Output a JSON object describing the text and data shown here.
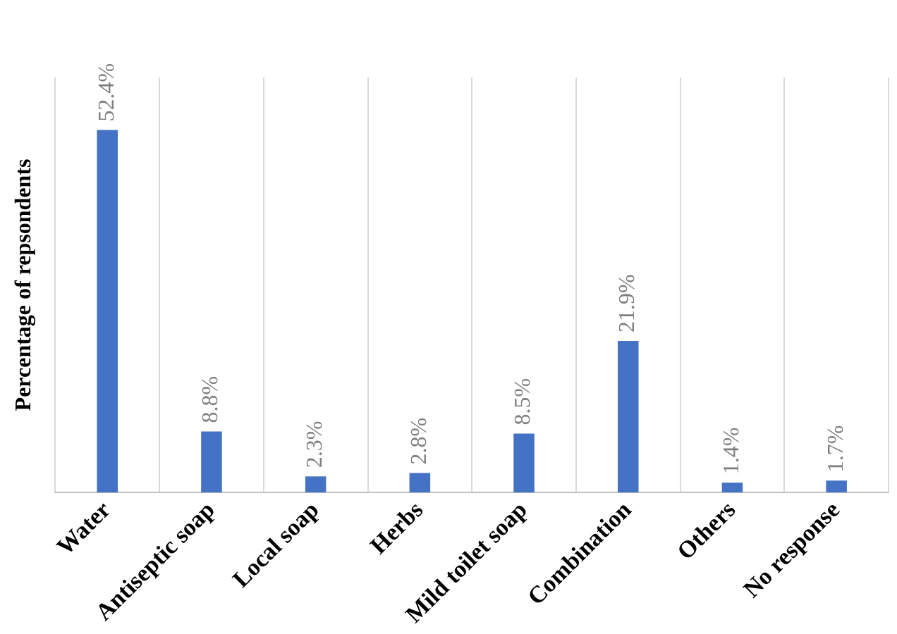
{
  "chart_data": {
    "type": "bar",
    "ylabel": "Percentage of repsondents",
    "categories": [
      "Water",
      "Antiseptic soap",
      "Local soap",
      "Herbs",
      "Mild toilet soap",
      "Combination",
      "Others",
      "No response"
    ],
    "values": [
      52.4,
      8.8,
      2.3,
      2.8,
      8.5,
      21.9,
      1.4,
      1.7
    ],
    "value_labels": [
      "52.4%",
      "8.8%",
      "2.3%",
      "2.8%",
      "8.5%",
      "21.9%",
      "1.4%",
      "1.7%"
    ],
    "color": "#4472c4",
    "grid": "x",
    "legend": false
  }
}
